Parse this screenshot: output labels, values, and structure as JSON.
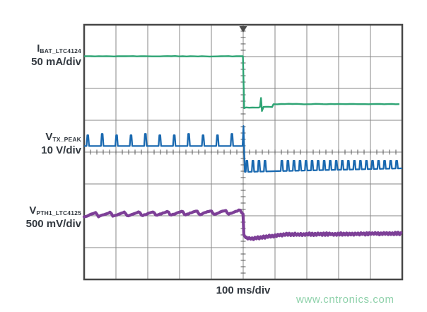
{
  "window": {
    "background": "#ffffff"
  },
  "colors": {
    "grid_line": "#878787",
    "grid_border": "#474747",
    "tick": "#5a5a5a",
    "trigger_marker": "#4b4b4b",
    "label_text": "#333940",
    "watermark_text": "#8ed1aa"
  },
  "channels": [
    {
      "label_symbol": "I",
      "label_subscript": "BAT_LTC4124",
      "scale": "50 mA/div",
      "color": "#2ea474"
    },
    {
      "label_symbol": "V",
      "label_subscript": "TX_PEAK",
      "scale": "10 V/div",
      "color": "#1a69b0"
    },
    {
      "label_symbol": "V",
      "label_subscript": "PTH1_LTC4125",
      "scale": "500 mV/div",
      "color": "#7d3f97"
    }
  ],
  "x_axis_label": "100 ms/div",
  "watermark": "www.cntronics.com",
  "chart_data": {
    "type": "line",
    "xlabel": "100 ms/div",
    "grid": {
      "x_divisions": 10,
      "y_divisions": 8,
      "minor_ticks_per_div": 5
    },
    "trigger": {
      "x_div": 5.0,
      "position": "top"
    },
    "series": [
      {
        "name": "IBAT_LTC4124",
        "scale": "50 mA/div",
        "color": "#2ea474",
        "kind": "step_down",
        "pre_level": 0.99,
        "drop_x": 4.99,
        "post_level_initial": 2.58,
        "post_level_settled": 2.49,
        "settle_x": 5.95,
        "glitch": {
          "x": 5.56,
          "top": 2.3,
          "bottom": 2.71
        },
        "noise": 0.014
      },
      {
        "name": "VTX_PEAK",
        "scale": "10 V/div",
        "color": "#1a69b0",
        "kind": "pulse_train_step",
        "pre": {
          "base": 3.81,
          "peak": 3.47,
          "period": 0.453,
          "first_x": 0.1
        },
        "transition": {
          "x": 5.0,
          "spike_top": 3.18
        },
        "post": {
          "base_start": 4.62,
          "base_end": 4.51,
          "peak": 4.27,
          "groups": [
            {
              "first_x": 5.1,
              "period": 0.19,
              "until": 5.72
            },
            {
              "first_x": 6.2,
              "period": 0.19,
              "until": 9.97
            }
          ]
        }
      },
      {
        "name": "VPTH1_LTC4125",
        "scale": "500 mV/div",
        "color": "#7d3f97",
        "kind": "sawtooth_step_down",
        "pre": {
          "center_start": 5.97,
          "center_end": 5.88,
          "period": 0.453,
          "amplitude": 0.068
        },
        "drop_x": 5.0,
        "post": {
          "dip": 6.72,
          "dip_x": 5.25,
          "settle": 6.585,
          "settle_x": 6.3,
          "end": 6.555,
          "noise": 0.03
        }
      }
    ]
  }
}
